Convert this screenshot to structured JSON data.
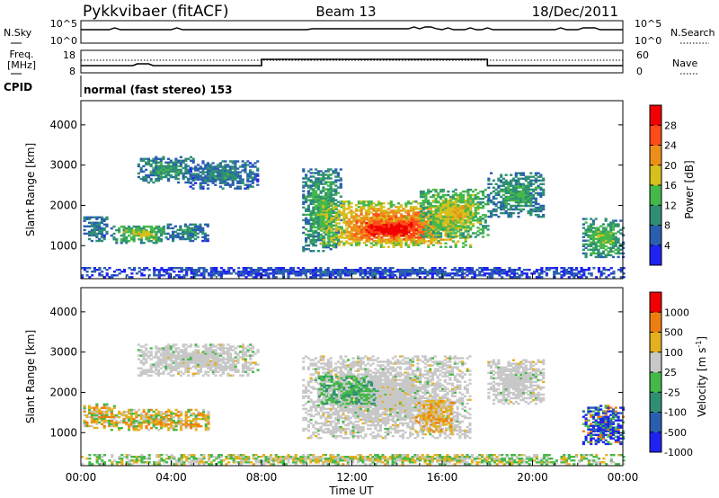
{
  "header": {
    "station": "Pykkvibaer (fitACF)",
    "beam": "Beam 13",
    "date": "18/Dec/2011"
  },
  "status_panels": {
    "nsky_label": "N.Sky",
    "nsky_ticks": [
      "10^5",
      "10^0"
    ],
    "nsearch_label": "N.Search",
    "nsearch_ticks": [
      "10^5",
      "10^0"
    ],
    "freq_label_1": "Freq.",
    "freq_label_2": "[MHz]",
    "freq_ticks": [
      "18",
      "8"
    ],
    "nave_label": "Nave",
    "nave_ticks": [
      "60",
      "0"
    ],
    "cpid_label": "CPID",
    "cpid_text": "normal (fast stereo) 153"
  },
  "chart_data": [
    {
      "type": "heatmap",
      "title": "",
      "parameter": "Power",
      "xlabel": "",
      "ylabel": "Slant Range [km]",
      "y_ticks": [
        1000,
        2000,
        3000,
        4000
      ],
      "ylim": [
        180,
        4600
      ],
      "x_ticks": [
        "00:00",
        "04:00",
        "08:00",
        "12:00",
        "16:00",
        "20:00",
        "00:00"
      ],
      "xlim_hours": [
        0,
        24
      ],
      "colorbar_label": "Power [dB]",
      "colorbar_ticks": [
        "4",
        "8",
        "12",
        "16",
        "20",
        "24",
        "28"
      ],
      "colorbar_range": [
        0,
        32
      ],
      "colors": [
        "#1f22f0",
        "#2a5fb0",
        "#2f8f75",
        "#45b84a",
        "#d6c01c",
        "#ec8f1a",
        "#ff4a1a",
        "#f00000"
      ],
      "regions": [
        {
          "t": [
            0.1,
            1.1
          ],
          "r": [
            1100,
            1700
          ],
          "level": 1.8
        },
        {
          "t": [
            1.3,
            3.8
          ],
          "r": [
            1050,
            1500
          ],
          "level": 3.5
        },
        {
          "t": [
            3.8,
            5.6
          ],
          "r": [
            1100,
            1550
          ],
          "level": 2.0
        },
        {
          "t": [
            2.5,
            5.0
          ],
          "r": [
            2550,
            3200
          ],
          "level": 2.2
        },
        {
          "t": [
            4.8,
            7.8
          ],
          "r": [
            2400,
            3100
          ],
          "level": 1.8
        },
        {
          "t": [
            9.8,
            11.5
          ],
          "r": [
            850,
            2900
          ],
          "level": 2.8
        },
        {
          "t": [
            10.6,
            17.2
          ],
          "r": [
            950,
            2100
          ],
          "level": 5.6
        },
        {
          "t": [
            11.5,
            15.8
          ],
          "r": [
            1050,
            1700
          ],
          "level": 7.0
        },
        {
          "t": [
            15.0,
            18.0
          ],
          "r": [
            1200,
            2400
          ],
          "level": 4.0
        },
        {
          "t": [
            18.0,
            20.5
          ],
          "r": [
            1700,
            2800
          ],
          "level": 2.5
        },
        {
          "t": [
            22.2,
            24.0
          ],
          "r": [
            700,
            1650
          ],
          "level": 3.2
        },
        {
          "t": [
            0.0,
            24.0
          ],
          "r": [
            200,
            450
          ],
          "level": 0.8
        }
      ]
    },
    {
      "type": "heatmap",
      "title": "",
      "parameter": "Velocity",
      "xlabel": "Time UT",
      "ylabel": "Slant Range [km]",
      "y_ticks": [
        1000,
        2000,
        3000,
        4000
      ],
      "ylim": [
        180,
        4600
      ],
      "x_ticks": [
        "00:00",
        "04:00",
        "08:00",
        "12:00",
        "16:00",
        "20:00",
        "00:00"
      ],
      "xlim_hours": [
        0,
        24
      ],
      "colorbar_label": "Velocity [m s^-1]",
      "colorbar_ticks": [
        "1000",
        "500",
        "100",
        "25",
        "-25",
        "-100",
        "-500",
        "-1000"
      ],
      "colors": [
        "#1f22f0",
        "#2a5fb0",
        "#2f8f75",
        "#45b84a",
        "#c8c8c8",
        "#e4b020",
        "#ec7e10",
        "#f00000"
      ],
      "regions": [
        {
          "t": [
            0.1,
            1.5
          ],
          "r": [
            1100,
            1700
          ],
          "class": "mixed-orange"
        },
        {
          "t": [
            1.3,
            5.6
          ],
          "r": [
            1050,
            1550
          ],
          "class": "mixed-orange"
        },
        {
          "t": [
            2.5,
            7.8
          ],
          "r": [
            2400,
            3200
          ],
          "class": "ground-scatter"
        },
        {
          "t": [
            9.8,
            17.2
          ],
          "r": [
            850,
            2900
          ],
          "class": "ground-scatter"
        },
        {
          "t": [
            10.5,
            13.0
          ],
          "r": [
            1700,
            2400
          ],
          "class": "green-patch"
        },
        {
          "t": [
            14.8,
            16.5
          ],
          "r": [
            1000,
            1800
          ],
          "class": "orange-patch"
        },
        {
          "t": [
            18.0,
            20.5
          ],
          "r": [
            1700,
            2800
          ],
          "class": "ground-scatter"
        },
        {
          "t": [
            22.2,
            24.0
          ],
          "r": [
            700,
            1650
          ],
          "class": "blue-patch"
        },
        {
          "t": [
            0.0,
            24.0
          ],
          "r": [
            200,
            450
          ],
          "class": "mixed-green"
        }
      ]
    }
  ],
  "colors": {
    "axis": "#000000",
    "dotted": "#000000"
  }
}
